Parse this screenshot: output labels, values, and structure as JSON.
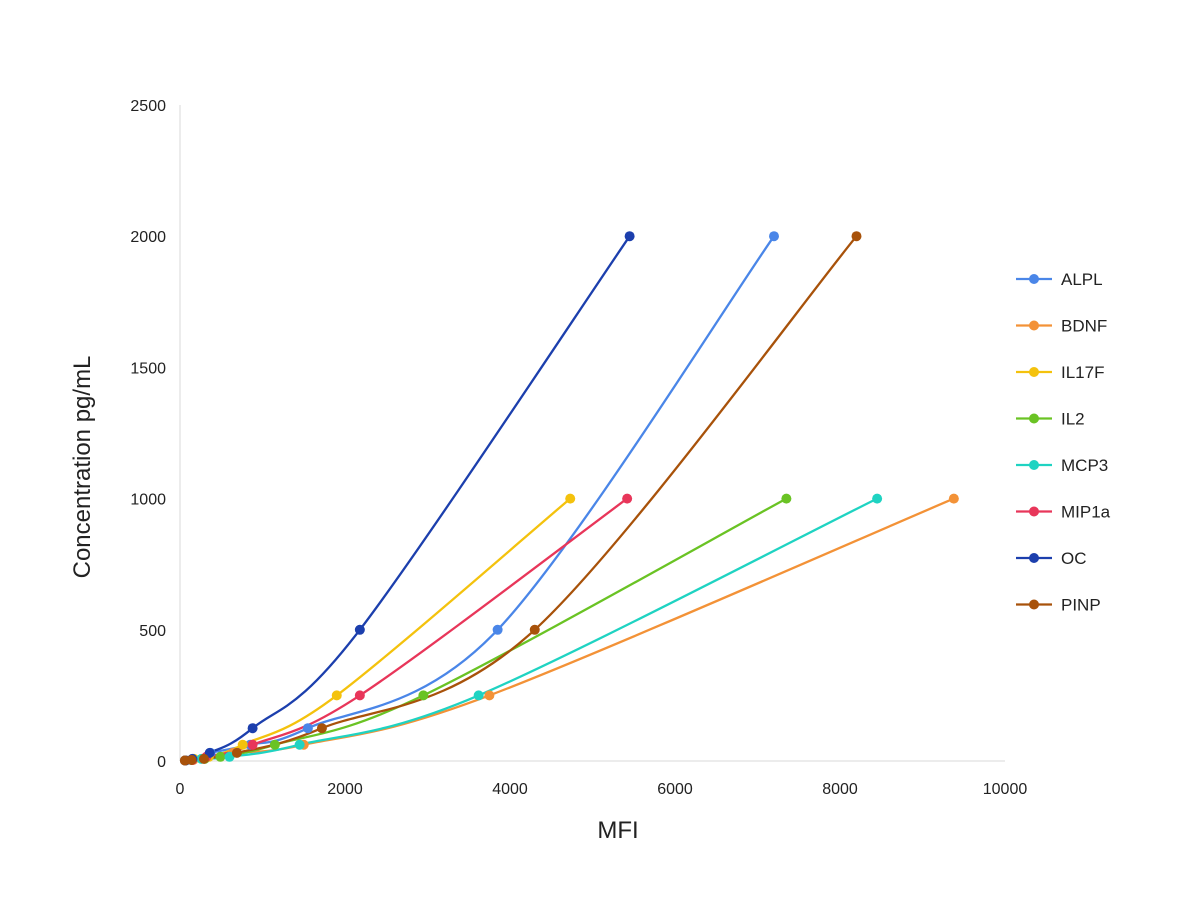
{
  "chart_data": {
    "type": "line",
    "title": "",
    "xlabel": "MFI",
    "ylabel": "Concentration pg/mL",
    "xlim": [
      0,
      10000
    ],
    "ylim": [
      0,
      2500
    ],
    "x_ticks": [
      0,
      2000,
      4000,
      6000,
      8000,
      10000
    ],
    "y_ticks": [
      0,
      500,
      1000,
      1500,
      2000,
      2500
    ],
    "grid": false,
    "legend_position": "right",
    "smooth": true,
    "series": [
      {
        "name": "ALPL",
        "color": "#4A86E8",
        "points": [
          [
            60,
            2
          ],
          [
            160,
            8
          ],
          [
            370,
            31
          ],
          [
            850,
            62
          ],
          [
            1550,
            125
          ],
          [
            3850,
            500
          ],
          [
            7200,
            2000
          ]
        ]
      },
      {
        "name": "BDNF",
        "color": "#F39237",
        "points": [
          [
            60,
            2
          ],
          [
            160,
            4
          ],
          [
            330,
            16
          ],
          [
            640,
            31
          ],
          [
            1500,
            62
          ],
          [
            3750,
            250
          ],
          [
            9380,
            1000
          ]
        ]
      },
      {
        "name": "IL17F",
        "color": "#F4C20D",
        "points": [
          [
            70,
            2
          ],
          [
            170,
            8
          ],
          [
            350,
            16
          ],
          [
            760,
            62
          ],
          [
            1900,
            250
          ],
          [
            4730,
            1000
          ]
        ]
      },
      {
        "name": "IL2",
        "color": "#6AC324",
        "points": [
          [
            60,
            2
          ],
          [
            140,
            4
          ],
          [
            300,
            8
          ],
          [
            490,
            16
          ],
          [
            1150,
            62
          ],
          [
            2950,
            250
          ],
          [
            7350,
            1000
          ]
        ]
      },
      {
        "name": "MCP3",
        "color": "#1FD3C2",
        "points": [
          [
            60,
            2
          ],
          [
            140,
            4
          ],
          [
            260,
            8
          ],
          [
            600,
            16
          ],
          [
            1450,
            62
          ],
          [
            3620,
            250
          ],
          [
            8450,
            1000
          ]
        ]
      },
      {
        "name": "MIP1a",
        "color": "#E8365A",
        "points": [
          [
            60,
            2
          ],
          [
            150,
            4
          ],
          [
            320,
            16
          ],
          [
            880,
            62
          ],
          [
            2180,
            250
          ],
          [
            5420,
            1000
          ]
        ]
      },
      {
        "name": "OC",
        "color": "#1C3FAD",
        "points": [
          [
            70,
            2
          ],
          [
            150,
            8
          ],
          [
            360,
            31
          ],
          [
            880,
            125
          ],
          [
            2180,
            500
          ],
          [
            5450,
            2000
          ]
        ]
      },
      {
        "name": "PINP",
        "color": "#A8520A",
        "points": [
          [
            60,
            2
          ],
          [
            140,
            4
          ],
          [
            290,
            8
          ],
          [
            690,
            31
          ],
          [
            1720,
            125
          ],
          [
            4300,
            500
          ],
          [
            8200,
            2000
          ]
        ]
      }
    ]
  }
}
